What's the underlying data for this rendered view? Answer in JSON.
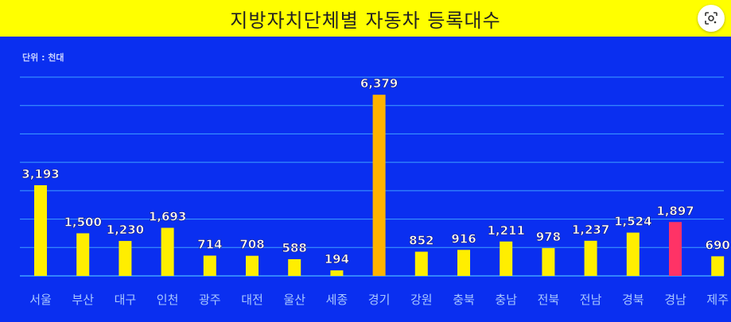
{
  "header": {
    "title": "지방자치단체별 자동차 등록대수",
    "lens_icon": "lens-search-icon"
  },
  "colors": {
    "background": "#0a2ff0",
    "title_bg": "#ffff00",
    "bar_default": "#ffee00",
    "bar_highlight_max": "#ffb300",
    "bar_highlight_red": "#ff3366",
    "grid": "#3fa0ff"
  },
  "chart_data": {
    "type": "bar",
    "title": "지방자치단체별 자동차 등록대수",
    "unit_label": "단위 : 천대",
    "categories": [
      "서울",
      "부산",
      "대구",
      "인천",
      "광주",
      "대전",
      "울산",
      "세종",
      "경기",
      "강원",
      "충북",
      "충남",
      "전북",
      "전남",
      "경북",
      "경남",
      "제주"
    ],
    "values": [
      3193,
      1500,
      1230,
      1693,
      714,
      708,
      588,
      194,
      6379,
      852,
      916,
      1211,
      978,
      1237,
      1524,
      1897,
      690
    ],
    "value_labels": [
      "3,193",
      "1,500",
      "1,230",
      "1,693",
      "714",
      "708",
      "588",
      "194",
      "6,379",
      "852",
      "916",
      "1,211",
      "978",
      "1,237",
      "1,524",
      "1,897",
      "690"
    ],
    "highlight": {
      "경기": "#ffb300",
      "경남": "#ff3366"
    },
    "ylim": [
      0,
      7000
    ],
    "grid": true
  }
}
